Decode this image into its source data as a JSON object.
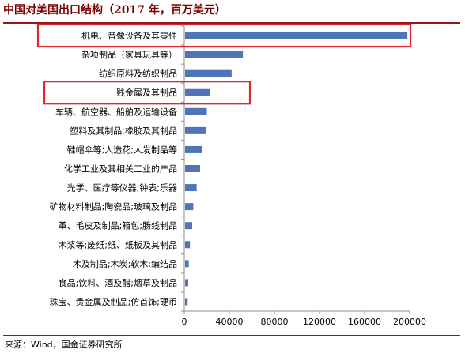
{
  "title": "中国对美国出口结构（2017 年，百万美元）",
  "source": "来源：Wind，国金证券研究所",
  "colors": {
    "bar": "#4f74b8",
    "highlight_box": "#e0262a",
    "title": "#7a0000",
    "rule": "#8b1a1a",
    "axis": "#8c8c8c"
  },
  "chart_data": {
    "type": "bar",
    "orientation": "horizontal",
    "title": "中国对美国出口结构（2017 年，百万美元）",
    "xlim": [
      0,
      200000
    ],
    "x_ticks": [
      "0",
      "40000",
      "80000",
      "120000",
      "160000",
      "200000"
    ],
    "grid": false,
    "highlighted": [
      "机电、音像设备及其零件",
      "贱金属及其制品"
    ],
    "categories": [
      "机电、音像设备及其零件",
      "杂项制品（家具玩具等）",
      "纺织原料及纺织制品",
      "贱金属及其制品",
      "车辆、航空器、船舶及运输设备",
      "塑料及其制品;橡胶及其制品",
      "鞋帽伞等;人造花;人发制品等",
      "化学工业及其相关工业的产品",
      "光学、医疗等仪器;钟表;乐器",
      "矿物材料制品;陶瓷品;玻璃及制品",
      "革、毛皮及制品;箱包;肠线制品",
      "木浆等;废纸;纸、纸板及其制品",
      "木及制品;木炭;软木;编结品",
      "食品;饮料、酒及醋;烟草及制品",
      "珠宝、贵金属及制品;仿首饰;硬币"
    ],
    "values": [
      198000,
      52000,
      42000,
      23000,
      20000,
      19000,
      16000,
      14000,
      11000,
      8000,
      7000,
      5000,
      4000,
      3500,
      3000
    ]
  }
}
